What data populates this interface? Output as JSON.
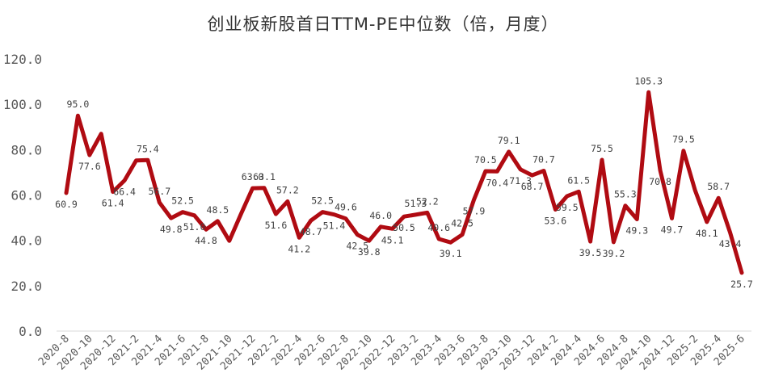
{
  "chart_data": {
    "type": "line",
    "title": "创业板新股首日TTM-PE中位数（倍，月度）",
    "xlabel": "",
    "ylabel": "",
    "ylim": [
      0,
      120
    ],
    "y_ticks": [
      "0.0",
      "20.0",
      "40.0",
      "60.0",
      "80.0",
      "100.0",
      "120.0"
    ],
    "grid": false,
    "legend": "none",
    "line_color": "#B00B12",
    "x": [
      "2020-8",
      "2020-9",
      "2020-10",
      "2020-11",
      "2020-12",
      "2021-1",
      "2021-2",
      "2021-3",
      "2021-4",
      "2021-5",
      "2021-6",
      "2021-7",
      "2021-8",
      "2021-9",
      "2021-10",
      "2021-11",
      "2021-12",
      "2022-1",
      "2022-2",
      "2022-3",
      "2022-4",
      "2022-5",
      "2022-6",
      "2022-7",
      "2022-8",
      "2022-9",
      "2022-10",
      "2022-11",
      "2022-12",
      "2023-1",
      "2023-2",
      "2023-3",
      "2023-4",
      "2023-5",
      "2023-6",
      "2023-7",
      "2023-8",
      "2023-9",
      "2023-10",
      "2023-11",
      "2023-12",
      "2024-1",
      "2024-2",
      "2024-3",
      "2024-4",
      "2024-5",
      "2024-6",
      "2024-7",
      "2024-8",
      "2024-9",
      "2024-10",
      "2024-11",
      "2024-12",
      "2025-1",
      "2025-2",
      "2025-3",
      "2025-4",
      "2025-5",
      "2025-6"
    ],
    "x_tick_labels": [
      "2020-8",
      "2020-10",
      "2020-12",
      "2021-2",
      "2021-4",
      "2021-6",
      "2021-8",
      "2021-10",
      "2021-12",
      "2022-2",
      "2022-4",
      "2022-6",
      "2022-8",
      "2022-10",
      "2022-12",
      "2023-2",
      "2023-4",
      "2023-6",
      "2023-8",
      "2023-10",
      "2023-12",
      "2024-2",
      "2024-4",
      "2024-6",
      "2024-8",
      "2024-10",
      "2024-12",
      "2025-2",
      "2025-4",
      "2025-6"
    ],
    "series": [
      {
        "values": [
          60.9,
          95.0,
          77.6,
          87.0,
          61.4,
          66.4,
          75.2,
          75.4,
          56.7,
          49.8,
          52.5,
          51.0,
          44.8,
          48.5,
          39.8,
          51.6,
          63.0,
          63.1,
          51.6,
          57.2,
          41.2,
          48.7,
          52.5,
          51.4,
          49.6,
          42.5,
          39.8,
          46.0,
          45.1,
          50.5,
          51.3,
          52.2,
          40.6,
          39.1,
          42.5,
          57.9,
          70.5,
          70.4,
          79.1,
          71.3,
          68.7,
          70.7,
          53.6,
          59.5,
          61.5,
          39.5,
          75.5,
          39.2,
          55.3,
          49.3,
          105.3,
          70.8,
          49.7,
          79.5,
          62.0,
          48.1,
          58.7,
          43.4,
          25.7
        ],
        "labels": [
          "60.9",
          "95.0",
          "77.6",
          "",
          "61.4",
          "66.4",
          "",
          "75.4",
          "56.7",
          "49.8",
          "52.5",
          "51.0",
          "44.8",
          "48.5",
          "",
          "",
          "63.0",
          "63.1",
          "51.6",
          "57.2",
          "41.2",
          "48.7",
          "52.5",
          "51.4",
          "49.6",
          "42.5",
          "39.8",
          "46.0",
          "45.1",
          "50.5",
          "51.3",
          "52.2",
          "40.6",
          "39.1",
          "42.5",
          "57.9",
          "70.5",
          "70.4",
          "79.1",
          "71.3",
          "68.7",
          "70.7",
          "53.6",
          "59.5",
          "61.5",
          "39.5",
          "75.5",
          "39.2",
          "55.3",
          "49.3",
          "105.3",
          "70.8",
          "49.7",
          "79.5",
          "",
          "48.1",
          "58.7",
          "43.4",
          "25.7"
        ]
      }
    ]
  }
}
